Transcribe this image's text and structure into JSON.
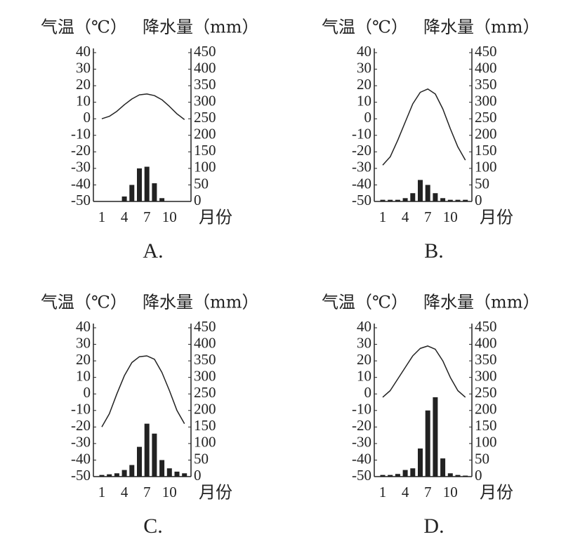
{
  "chart_data": [
    {
      "type": "combo",
      "left_axis_label": "气温（℃）",
      "right_axis_label": "降水量（mm）",
      "x_axis_label": "月份",
      "caption": "A.",
      "categories": [
        "1",
        null,
        null,
        "4",
        null,
        null,
        "7",
        null,
        null,
        "10",
        null,
        null
      ],
      "ylim": [
        -50,
        40
      ],
      "yticks": [
        40,
        30,
        20,
        10,
        0,
        -10,
        -20,
        -30,
        -40,
        -50
      ],
      "y2lim": [
        0,
        450
      ],
      "y2ticks": [
        450,
        400,
        350,
        300,
        250,
        200,
        150,
        100,
        50,
        0
      ],
      "series": [
        {
          "type": "line",
          "color": "#222",
          "values": [
            0,
            1.5,
            4.5,
            8.5,
            12,
            14.5,
            15,
            14,
            11.5,
            7.5,
            3,
            -0.5
          ]
        },
        {
          "type": "bar",
          "axis": "y2",
          "color": "#222",
          "values": [
            0,
            0,
            0,
            15,
            50,
            100,
            105,
            55,
            10,
            0,
            0,
            0
          ]
        }
      ]
    },
    {
      "type": "combo",
      "left_axis_label": "气温（℃）",
      "right_axis_label": "降水量（mm）",
      "x_axis_label": "月份",
      "caption": "B.",
      "categories": [
        "1",
        null,
        null,
        "4",
        null,
        null,
        "7",
        null,
        null,
        "10",
        null,
        null
      ],
      "ylim": [
        -50,
        40
      ],
      "yticks": [
        40,
        30,
        20,
        10,
        0,
        -10,
        -20,
        -30,
        -40,
        -50
      ],
      "y2lim": [
        0,
        450
      ],
      "y2ticks": [
        450,
        400,
        350,
        300,
        250,
        200,
        150,
        100,
        50,
        0
      ],
      "series": [
        {
          "type": "line",
          "color": "#222",
          "values": [
            -28,
            -23,
            -13,
            -2,
            9,
            16,
            18,
            15,
            6,
            -6,
            -17,
            -25
          ]
        },
        {
          "type": "bar",
          "axis": "y2",
          "color": "#222",
          "values": [
            5,
            5,
            5,
            10,
            25,
            65,
            50,
            25,
            10,
            5,
            5,
            5
          ]
        }
      ]
    },
    {
      "type": "combo",
      "left_axis_label": "气温（℃）",
      "right_axis_label": "降水量（mm）",
      "x_axis_label": "月份",
      "caption": "C.",
      "categories": [
        "1",
        null,
        null,
        "4",
        null,
        null,
        "7",
        null,
        null,
        "10",
        null,
        null
      ],
      "ylim": [
        -50,
        40
      ],
      "yticks": [
        40,
        30,
        20,
        10,
        0,
        -10,
        -20,
        -30,
        -40,
        -50
      ],
      "y2lim": [
        0,
        450
      ],
      "y2ticks": [
        450,
        400,
        350,
        300,
        250,
        200,
        150,
        100,
        50,
        0
      ],
      "series": [
        {
          "type": "line",
          "color": "#222",
          "values": [
            -20,
            -12,
            0,
            11,
            19,
            22.5,
            23,
            21,
            13,
            2,
            -10,
            -18
          ]
        },
        {
          "type": "bar",
          "axis": "y2",
          "color": "#222",
          "values": [
            5,
            7,
            10,
            20,
            35,
            90,
            160,
            130,
            50,
            25,
            15,
            10
          ]
        }
      ]
    },
    {
      "type": "combo",
      "left_axis_label": "气温（℃）",
      "right_axis_label": "降水量（mm）",
      "x_axis_label": "月份",
      "caption": "D.",
      "categories": [
        "1",
        null,
        null,
        "4",
        null,
        null,
        "7",
        null,
        null,
        "10",
        null,
        null
      ],
      "ylim": [
        -50,
        40
      ],
      "yticks": [
        40,
        30,
        20,
        10,
        0,
        -10,
        -20,
        -30,
        -40,
        -50
      ],
      "y2lim": [
        0,
        450
      ],
      "y2ticks": [
        450,
        400,
        350,
        300,
        250,
        200,
        150,
        100,
        50,
        0
      ],
      "series": [
        {
          "type": "line",
          "color": "#222",
          "values": [
            -2,
            2,
            9,
            16,
            23,
            27.5,
            29,
            27,
            20,
            10,
            2,
            -2
          ]
        },
        {
          "type": "bar",
          "axis": "y2",
          "color": "#222",
          "values": [
            5,
            5,
            8,
            20,
            25,
            85,
            200,
            240,
            55,
            10,
            5,
            3
          ]
        }
      ]
    }
  ]
}
